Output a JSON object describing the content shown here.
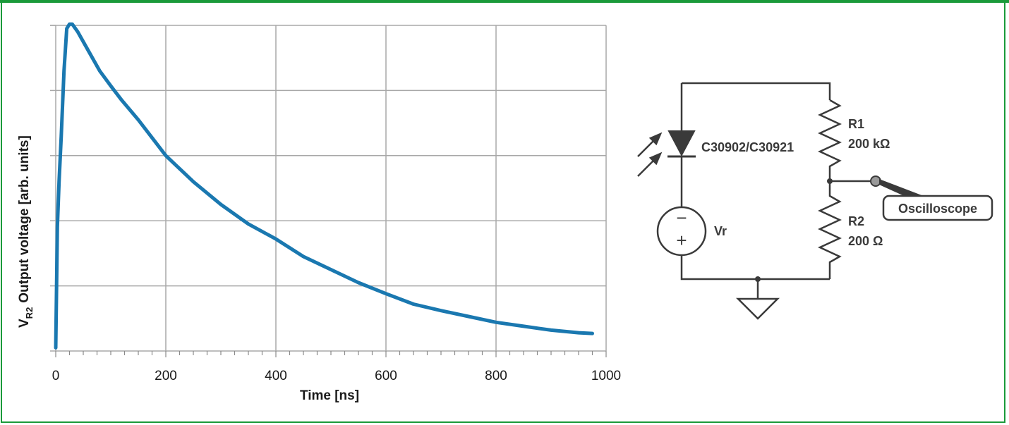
{
  "chart_data": {
    "type": "line",
    "xlabel": "Time [ns]",
    "ylabel_main": "Output voltage [arb. units]",
    "ylabel_prefix": "V",
    "ylabel_sub": "R2",
    "xlim": [
      0,
      1000
    ],
    "ylim": [
      0,
      5
    ],
    "x_ticks": [
      0,
      200,
      400,
      600,
      800,
      1000
    ],
    "x_tick_labels": [
      "0",
      "200",
      "400",
      "600",
      "800",
      "1000"
    ],
    "y_ticks": [
      0,
      1,
      2,
      3,
      4,
      5
    ],
    "grid": true,
    "color": "#1a78b0",
    "series": [
      {
        "x": [
          0,
          3,
          6,
          10,
          15,
          20,
          25,
          30,
          40,
          50,
          60,
          80,
          100,
          120,
          150,
          200,
          250,
          300,
          350,
          400,
          450,
          500,
          550,
          600,
          650,
          700,
          750,
          800,
          850,
          900,
          950,
          975
        ],
        "y": [
          0.05,
          1.9,
          2.6,
          3.3,
          4.3,
          4.95,
          5.02,
          5.02,
          4.9,
          4.75,
          4.6,
          4.3,
          4.07,
          3.85,
          3.55,
          3.0,
          2.6,
          2.25,
          1.95,
          1.72,
          1.45,
          1.25,
          1.05,
          0.88,
          0.72,
          0.62,
          0.53,
          0.44,
          0.38,
          0.32,
          0.28,
          0.27
        ]
      }
    ]
  },
  "circuit": {
    "diode_label": "C30902/C30921",
    "r1_name": "R1",
    "r1_value": "200 kΩ",
    "r2_name": "R2",
    "r2_value": "200 Ω",
    "source_label": "Vr",
    "source_minus": "−",
    "source_plus": "+",
    "scope_label": "Oscilloscope"
  }
}
